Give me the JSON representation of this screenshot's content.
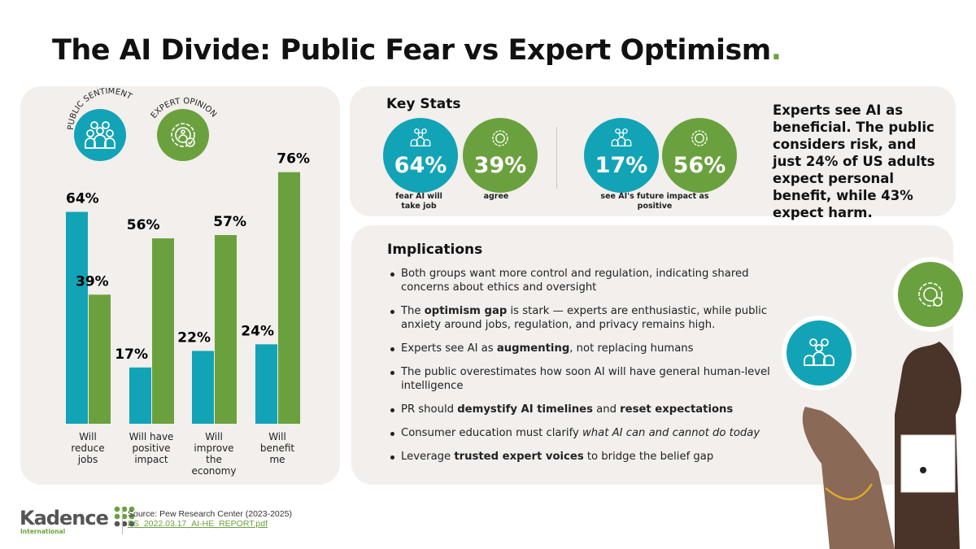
{
  "title": "The AI Divide: Public Fear vs Expert Optimism",
  "title_dot": ".",
  "legend": {
    "public": "PUBLIC SENTIMENT",
    "expert": "EXPERT OPINION"
  },
  "colors": {
    "public": "#12a3b6",
    "expert": "#6aa13e",
    "panel": "#f2efec"
  },
  "chart_data": {
    "type": "bar",
    "categories": [
      "Will reduce jobs",
      "Will have positive impact",
      "Will improve the economy",
      "Will benefit me"
    ],
    "series": [
      {
        "name": "PUBLIC SENTIMENT",
        "values": [
          64,
          17,
          22,
          24
        ],
        "labels": [
          "64%",
          "17%",
          "22%",
          "24%"
        ]
      },
      {
        "name": "EXPERT OPINION",
        "values": [
          39,
          56,
          57,
          76
        ],
        "labels": [
          "39%",
          "56%",
          "57%",
          "76%"
        ]
      }
    ],
    "ylim": [
      0,
      80
    ],
    "grid": false,
    "legend": "top-left"
  },
  "cat_lines": [
    [
      "Will",
      "reduce",
      "jobs"
    ],
    [
      "Will have",
      "positive",
      "impact"
    ],
    [
      "Will",
      "improve",
      "the",
      "economy"
    ],
    [
      "Will",
      "benefit",
      "me"
    ]
  ],
  "key_stats": {
    "heading": "Key Stats",
    "items": [
      {
        "value": "64%",
        "group": "public"
      },
      {
        "value": "39%",
        "group": "expert"
      },
      {
        "value": "17%",
        "group": "public"
      },
      {
        "value": "56%",
        "group": "expert"
      }
    ],
    "captions": [
      "fear AI will take job",
      "agree",
      "see AI's future impact as positive"
    ]
  },
  "expert_summary": "Experts see AI as beneficial. The public considers risk, and just 24% of US adults expect personal benefit, while 43% expect harm.",
  "implications": {
    "heading": "Implications",
    "items": [
      [
        {
          "t": "Both groups want more control and regulation, indicating shared concerns about ethics and oversight"
        }
      ],
      [
        {
          "t": "The "
        },
        {
          "t": "optimism gap",
          "b": true
        },
        {
          "t": " is stark — experts are enthusiastic, while public anxiety around jobs, regulation, and privacy remains high."
        }
      ],
      [
        {
          "t": "Experts see AI as "
        },
        {
          "t": "augmenting",
          "b": true
        },
        {
          "t": ", not replacing humans"
        }
      ],
      [
        {
          "t": "The public overestimates how soon AI will have general human-level intelligence"
        }
      ],
      [
        {
          "t": "PR should "
        },
        {
          "t": "demystify AI timelines",
          "b": true
        },
        {
          "t": " and "
        },
        {
          "t": "reset expectations",
          "b": true
        }
      ],
      [
        {
          "t": "Consumer education must clarify "
        },
        {
          "t": "what AI can and cannot do today",
          "i": true
        }
      ],
      [
        {
          "t": "Leverage "
        },
        {
          "t": "trusted expert voices",
          "b": true
        },
        {
          "t": " to bridge the belief gap"
        }
      ]
    ]
  },
  "footer": {
    "logo": "Kadence",
    "logo_sub": "International",
    "source": "Source: Pew Research Center (2023-2025)",
    "link": "PS_2022.03.17_AI-HE_REPORT.pdf"
  }
}
